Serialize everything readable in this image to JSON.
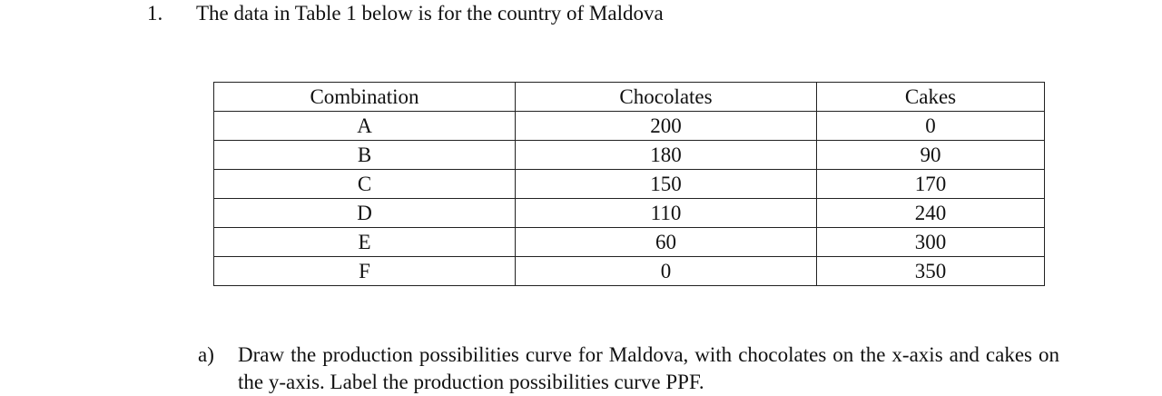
{
  "question": {
    "number": "1.",
    "text": "The data in Table 1 below is for the country of Maldova"
  },
  "table": {
    "headers": [
      "Combination",
      "Chocolates",
      "Cakes"
    ],
    "rows": [
      [
        "A",
        "200",
        "0"
      ],
      [
        "B",
        "180",
        "90"
      ],
      [
        "C",
        "150",
        "170"
      ],
      [
        "D",
        "110",
        "240"
      ],
      [
        "E",
        "60",
        "300"
      ],
      [
        "F",
        "0",
        "350"
      ]
    ]
  },
  "subquestion": {
    "label": "a)",
    "text": "Draw the production possibilities curve for Maldova, with chocolates  on the x-axis and cakes on the y-axis. Label the production possibilities curve PPF."
  }
}
